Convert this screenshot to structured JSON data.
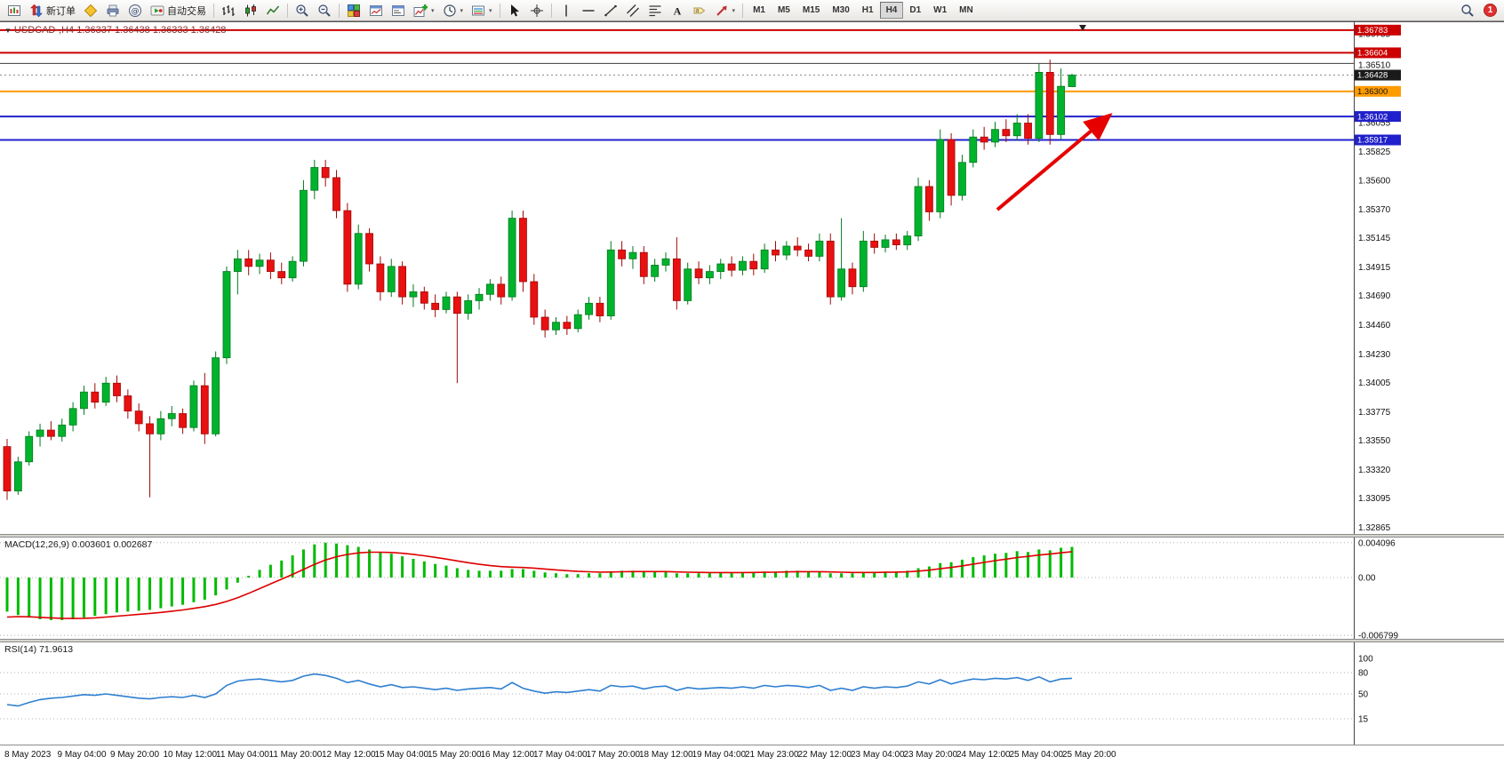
{
  "colors": {
    "bull": "#00b32c",
    "bull_stroke": "#007a1e",
    "bear": "#e81010",
    "bear_stroke": "#a00808",
    "macd_histogram": "#00bb00",
    "macd_signal": "#dd0000",
    "rsi_line": "#2e7fd0",
    "arrow": "#e60000",
    "resistance_line": "#cc0000",
    "pivot_line": "#ff9c00",
    "support_line": "#2020cc"
  },
  "toolbar": {
    "new_order_label": "新订单",
    "autotrading_label": "自动交易",
    "timeframes": [
      "M1",
      "M5",
      "M15",
      "M30",
      "H1",
      "H4",
      "D1",
      "W1",
      "MN"
    ],
    "active_timeframe": "H4",
    "badge_count": "1"
  },
  "chart": {
    "symbol_header": "USDCAD-,H4 1.36337 1.36438 1.36333 1.36428",
    "price_tags": [
      {
        "text": "1.36783",
        "bg": "#cc0000",
        "fg": "#ffffff"
      },
      {
        "text": "1.36604",
        "bg": "#cc0000",
        "fg": "#ffffff"
      },
      {
        "text": "1.36428",
        "bg": "#1a1a1a",
        "fg": "#ffffff"
      },
      {
        "text": "1.36300",
        "bg": "#ff9c00",
        "fg": "#111111"
      },
      {
        "text": "1.36102",
        "bg": "#2020cc",
        "fg": "#ffffff"
      },
      {
        "text": "1.35917",
        "bg": "#2020cc",
        "fg": "#ffffff"
      }
    ]
  },
  "macd": {
    "label": "MACD(12,26,9) 0.003601 0.002687"
  },
  "rsi": {
    "label": "RSI(14) 71.9613"
  },
  "chart_data": {
    "type": "candlestick",
    "symbol": "USDCAD",
    "timeframe": "H4",
    "title": "USDCAD-,H4",
    "current_bar": {
      "open": 1.36337,
      "high": 1.36438,
      "low": 1.36333,
      "close": 1.36428
    },
    "price_axis": {
      "top": 1.3681,
      "bottom": 1.3286,
      "ticks": [
        "1.36755",
        "1.36510",
        "1.36285",
        "1.36055",
        "1.35825",
        "1.35600",
        "1.35370",
        "1.35145",
        "1.34915",
        "1.34690",
        "1.34460",
        "1.34230",
        "1.34005",
        "1.33775",
        "1.33550",
        "1.33320",
        "1.33095",
        "1.32865"
      ]
    },
    "x_labels": [
      "8 May 2023",
      "9 May 04:00",
      "9 May 20:00",
      "10 May 12:00",
      "11 May 04:00",
      "11 May 20:00",
      "12 May 12:00",
      "15 May 04:00",
      "15 May 20:00",
      "16 May 12:00",
      "17 May 04:00",
      "17 May 20:00",
      "18 May 12:00",
      "19 May 04:00",
      "21 May 23:00",
      "22 May 12:00",
      "23 May 04:00",
      "23 May 20:00",
      "24 May 12:00",
      "25 May 04:00",
      "25 May 20:00"
    ],
    "horizontal_lines": [
      {
        "price": 1.36783,
        "color": "#cc0000",
        "width": 2
      },
      {
        "price": 1.36604,
        "color": "#cc0000",
        "width": 2
      },
      {
        "price": 1.3652,
        "color": "#3c3c3c",
        "width": 1
      },
      {
        "price": 1.363,
        "color": "#ff9c00",
        "width": 2
      },
      {
        "price": 1.36102,
        "color": "#2020cc",
        "width": 2
      },
      {
        "price": 1.35917,
        "color": "#2020cc",
        "width": 2
      }
    ],
    "annotation_arrow": {
      "from": [
        1122,
        212
      ],
      "to": [
        1247,
        107
      ],
      "color": "#e60000"
    },
    "candles_ohlc": [
      [
        1.335,
        1.3356,
        1.3308,
        1.3315
      ],
      [
        1.3315,
        1.3342,
        1.3312,
        1.3338
      ],
      [
        1.3338,
        1.3362,
        1.3335,
        1.3358
      ],
      [
        1.3358,
        1.3368,
        1.335,
        1.3363
      ],
      [
        1.3363,
        1.337,
        1.3355,
        1.3358
      ],
      [
        1.3358,
        1.3372,
        1.3354,
        1.3367
      ],
      [
        1.3367,
        1.3385,
        1.3362,
        1.338
      ],
      [
        1.338,
        1.3398,
        1.3375,
        1.3393
      ],
      [
        1.3393,
        1.34,
        1.338,
        1.3385
      ],
      [
        1.3385,
        1.3405,
        1.3382,
        1.34
      ],
      [
        1.34,
        1.3406,
        1.3385,
        1.339
      ],
      [
        1.339,
        1.3395,
        1.3372,
        1.3378
      ],
      [
        1.3378,
        1.3384,
        1.3362,
        1.3368
      ],
      [
        1.3368,
        1.3374,
        1.331,
        1.336
      ],
      [
        1.336,
        1.3378,
        1.3355,
        1.3372
      ],
      [
        1.3372,
        1.3382,
        1.3366,
        1.3376
      ],
      [
        1.3376,
        1.338,
        1.336,
        1.3365
      ],
      [
        1.3365,
        1.3402,
        1.3362,
        1.3398
      ],
      [
        1.3398,
        1.3408,
        1.3352,
        1.336
      ],
      [
        1.336,
        1.3425,
        1.3358,
        1.342
      ],
      [
        1.342,
        1.3492,
        1.3415,
        1.3488
      ],
      [
        1.3488,
        1.3505,
        1.347,
        1.3498
      ],
      [
        1.3498,
        1.3505,
        1.3485,
        1.3492
      ],
      [
        1.3492,
        1.3502,
        1.3486,
        1.3497
      ],
      [
        1.3497,
        1.3503,
        1.3482,
        1.3488
      ],
      [
        1.3488,
        1.3495,
        1.3478,
        1.3483
      ],
      [
        1.3483,
        1.35,
        1.348,
        1.3496
      ],
      [
        1.3496,
        1.356,
        1.3492,
        1.3552
      ],
      [
        1.3552,
        1.3576,
        1.3545,
        1.357
      ],
      [
        1.357,
        1.3576,
        1.3555,
        1.3562
      ],
      [
        1.3562,
        1.3568,
        1.353,
        1.3536
      ],
      [
        1.3536,
        1.3542,
        1.3472,
        1.3478
      ],
      [
        1.3478,
        1.3525,
        1.3474,
        1.3518
      ],
      [
        1.3518,
        1.3522,
        1.3488,
        1.3494
      ],
      [
        1.3494,
        1.35,
        1.3465,
        1.3472
      ],
      [
        1.3472,
        1.3498,
        1.3468,
        1.3492
      ],
      [
        1.3492,
        1.3496,
        1.3462,
        1.3468
      ],
      [
        1.3468,
        1.3478,
        1.346,
        1.3472
      ],
      [
        1.3472,
        1.3476,
        1.3458,
        1.3463
      ],
      [
        1.3463,
        1.347,
        1.3452,
        1.3458
      ],
      [
        1.3458,
        1.3472,
        1.3455,
        1.3468
      ],
      [
        1.3468,
        1.3472,
        1.34,
        1.3455
      ],
      [
        1.3455,
        1.347,
        1.345,
        1.3465
      ],
      [
        1.3465,
        1.3475,
        1.3458,
        1.347
      ],
      [
        1.347,
        1.3482,
        1.3465,
        1.3478
      ],
      [
        1.3478,
        1.3484,
        1.3462,
        1.3468
      ],
      [
        1.3468,
        1.3536,
        1.3465,
        1.353
      ],
      [
        1.353,
        1.3536,
        1.3472,
        1.348
      ],
      [
        1.348,
        1.3486,
        1.3446,
        1.3452
      ],
      [
        1.3452,
        1.3458,
        1.3436,
        1.3442
      ],
      [
        1.3442,
        1.3452,
        1.3438,
        1.3448
      ],
      [
        1.3448,
        1.3453,
        1.3438,
        1.3443
      ],
      [
        1.3443,
        1.3458,
        1.344,
        1.3454
      ],
      [
        1.3454,
        1.3468,
        1.345,
        1.3463
      ],
      [
        1.3463,
        1.3468,
        1.3448,
        1.3453
      ],
      [
        1.3453,
        1.3512,
        1.345,
        1.3505
      ],
      [
        1.3505,
        1.3512,
        1.3492,
        1.3498
      ],
      [
        1.3498,
        1.3508,
        1.349,
        1.3503
      ],
      [
        1.3503,
        1.3508,
        1.3478,
        1.3484
      ],
      [
        1.3484,
        1.3498,
        1.348,
        1.3493
      ],
      [
        1.3493,
        1.3503,
        1.3488,
        1.3498
      ],
      [
        1.3498,
        1.3515,
        1.3458,
        1.3465
      ],
      [
        1.3465,
        1.3495,
        1.3462,
        1.349
      ],
      [
        1.349,
        1.3496,
        1.3478,
        1.3483
      ],
      [
        1.3483,
        1.3493,
        1.3478,
        1.3488
      ],
      [
        1.3488,
        1.3498,
        1.3482,
        1.3494
      ],
      [
        1.3494,
        1.35,
        1.3484,
        1.3489
      ],
      [
        1.3489,
        1.35,
        1.3485,
        1.3496
      ],
      [
        1.3496,
        1.3502,
        1.3485,
        1.349
      ],
      [
        1.349,
        1.351,
        1.3487,
        1.3505
      ],
      [
        1.3505,
        1.3512,
        1.3496,
        1.3501
      ],
      [
        1.3501,
        1.3512,
        1.3497,
        1.3508
      ],
      [
        1.3508,
        1.3515,
        1.35,
        1.3505
      ],
      [
        1.3505,
        1.351,
        1.3496,
        1.35
      ],
      [
        1.35,
        1.3518,
        1.3496,
        1.3512
      ],
      [
        1.3512,
        1.3518,
        1.3462,
        1.3468
      ],
      [
        1.3468,
        1.353,
        1.3465,
        1.349
      ],
      [
        1.349,
        1.3495,
        1.347,
        1.3476
      ],
      [
        1.3476,
        1.352,
        1.3472,
        1.3512
      ],
      [
        1.3512,
        1.3518,
        1.3502,
        1.3507
      ],
      [
        1.3507,
        1.3517,
        1.3503,
        1.3513
      ],
      [
        1.3513,
        1.3518,
        1.3505,
        1.3509
      ],
      [
        1.3509,
        1.352,
        1.3505,
        1.3516
      ],
      [
        1.3516,
        1.3562,
        1.3512,
        1.3555
      ],
      [
        1.3555,
        1.356,
        1.3528,
        1.3535
      ],
      [
        1.3535,
        1.36,
        1.353,
        1.3592
      ],
      [
        1.3592,
        1.3597,
        1.354,
        1.3548
      ],
      [
        1.3548,
        1.358,
        1.3544,
        1.3574
      ],
      [
        1.3574,
        1.36,
        1.357,
        1.3594
      ],
      [
        1.3594,
        1.3602,
        1.3584,
        1.359
      ],
      [
        1.359,
        1.3606,
        1.3586,
        1.36
      ],
      [
        1.36,
        1.3608,
        1.359,
        1.3595
      ],
      [
        1.3595,
        1.3612,
        1.3591,
        1.3605
      ],
      [
        1.3605,
        1.3612,
        1.3588,
        1.3593
      ],
      [
        1.3593,
        1.3652,
        1.359,
        1.3645
      ],
      [
        1.3645,
        1.3655,
        1.3588,
        1.3596
      ],
      [
        1.3596,
        1.3648,
        1.3592,
        1.3634
      ],
      [
        1.36337,
        1.36438,
        1.36333,
        1.36428
      ]
    ],
    "indicators": [
      {
        "name": "MACD",
        "params": "12,26,9",
        "current_values": [
          0.003601,
          0.002687
        ],
        "axis_labels": [
          0.004096,
          0,
          -0.006799
        ],
        "signal_ema_period": 9,
        "histogram": [
          -0.004,
          -0.0044,
          -0.0047,
          -0.0049,
          -0.005,
          -0.005,
          -0.0049,
          -0.0047,
          -0.0045,
          -0.0043,
          -0.0041,
          -0.004,
          -0.0039,
          -0.0038,
          -0.0036,
          -0.0034,
          -0.0032,
          -0.0029,
          -0.0026,
          -0.0021,
          -0.0014,
          -0.0006,
          0.0002,
          0.0009,
          0.0015,
          0.002,
          0.0026,
          0.0033,
          0.0039,
          0.0041,
          0.004,
          0.0038,
          0.0036,
          0.0033,
          0.003,
          0.0028,
          0.0025,
          0.0022,
          0.0019,
          0.0016,
          0.0014,
          0.0011,
          0.0009,
          0.0008,
          0.0008,
          0.0008,
          0.001,
          0.001,
          0.0008,
          0.0006,
          0.0005,
          0.0004,
          0.0004,
          0.0005,
          0.0005,
          0.0007,
          0.0008,
          0.0008,
          0.0007,
          0.0007,
          0.0007,
          0.0005,
          0.0005,
          0.0005,
          0.0005,
          0.0006,
          0.0006,
          0.0006,
          0.0006,
          0.0007,
          0.0007,
          0.0008,
          0.0008,
          0.0007,
          0.0007,
          0.0005,
          0.0005,
          0.0005,
          0.0006,
          0.0006,
          0.0007,
          0.0007,
          0.0008,
          0.0011,
          0.0013,
          0.0017,
          0.0018,
          0.0021,
          0.0024,
          0.0026,
          0.0028,
          0.0029,
          0.0031,
          0.003,
          0.0033,
          0.0032,
          0.0035,
          0.0036
        ]
      },
      {
        "name": "RSI",
        "params": "14",
        "current_value": 71.9613,
        "axis_labels": [
          100,
          80,
          50,
          15
        ],
        "levels": [
          80,
          50,
          15
        ],
        "range": [
          0,
          100
        ],
        "series": [
          35,
          33,
          38,
          42,
          44,
          45,
          47,
          49,
          48,
          50,
          48,
          46,
          44,
          43,
          45,
          46,
          45,
          48,
          45,
          50,
          62,
          68,
          70,
          71,
          69,
          67,
          69,
          75,
          78,
          76,
          72,
          66,
          69,
          64,
          60,
          63,
          59,
          60,
          58,
          56,
          58,
          55,
          57,
          58,
          59,
          57,
          66,
          58,
          54,
          51,
          53,
          52,
          54,
          56,
          54,
          62,
          60,
          61,
          57,
          60,
          61,
          55,
          59,
          57,
          58,
          59,
          58,
          60,
          58,
          62,
          60,
          62,
          61,
          59,
          62,
          55,
          58,
          55,
          60,
          58,
          60,
          59,
          61,
          67,
          64,
          70,
          64,
          68,
          71,
          70,
          72,
          71,
          73,
          69,
          74,
          67,
          71,
          71.96
        ]
      }
    ]
  }
}
